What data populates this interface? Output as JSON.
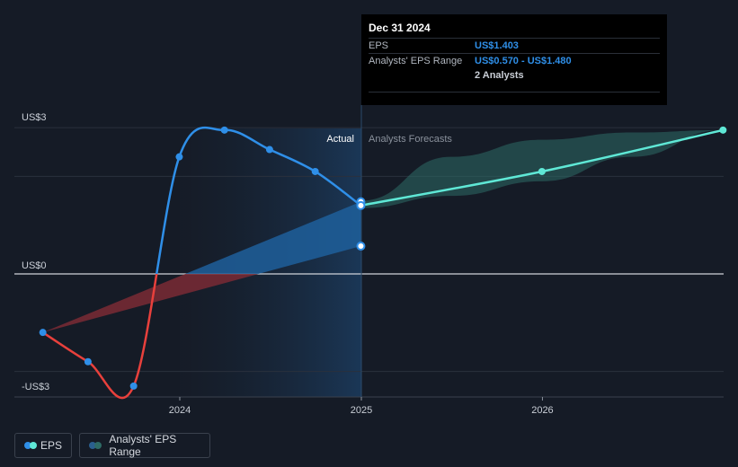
{
  "chart_data": {
    "type": "line",
    "x_ticks": [
      "2024",
      "2025",
      "2026"
    ],
    "y_ticks": [
      "US$3",
      "US$0",
      "-US$3"
    ],
    "ylim": [
      -3.0,
      3.0
    ],
    "divider_labels": {
      "actual": "Actual",
      "forecast": "Analysts Forecasts"
    },
    "series": [
      {
        "name": "EPS",
        "kind": "actual",
        "points": [
          {
            "x": "2023-03-31",
            "y": -1.2
          },
          {
            "x": "2023-06-30",
            "y": -1.8
          },
          {
            "x": "2023-09-30",
            "y": -2.3
          },
          {
            "x": "2023-12-31",
            "y": 2.4
          },
          {
            "x": "2024-03-31",
            "y": 2.95
          },
          {
            "x": "2024-06-30",
            "y": 2.55
          },
          {
            "x": "2024-09-30",
            "y": 2.1
          },
          {
            "x": "2024-12-31",
            "y": 1.403
          }
        ]
      },
      {
        "name": "EPS",
        "kind": "forecast",
        "points": [
          {
            "x": "2024-12-31",
            "y": 1.403
          },
          {
            "x": "2025-12-31",
            "y": 2.1
          },
          {
            "x": "2026-12-31",
            "y": 2.95
          }
        ]
      }
    ],
    "actual_range": [
      {
        "x": "2023-03-31",
        "low": -1.2,
        "high": -1.2
      },
      {
        "x": "2024-12-31",
        "low": 0.57,
        "high": 1.48
      }
    ],
    "forecast_range": [
      {
        "x": "2024-12-31",
        "low": 1.35,
        "high": 1.5
      },
      {
        "x": "2025-06-30",
        "low": 1.6,
        "high": 2.4
      },
      {
        "x": "2025-12-31",
        "low": 1.9,
        "high": 2.75
      },
      {
        "x": "2026-06-30",
        "low": 2.4,
        "high": 2.9
      },
      {
        "x": "2026-12-31",
        "low": 2.95,
        "high": 2.95
      }
    ],
    "tooltip": {
      "date": "Dec 31 2024",
      "eps_label": "EPS",
      "eps_value": "US$1.403",
      "range_label": "Analysts' EPS Range",
      "range_value": "US$0.570 - US$1.480",
      "analysts": "2 Analysts"
    },
    "legend": [
      {
        "label": "EPS",
        "colors": [
          "#2f8fe8",
          "#5fe8d6"
        ]
      },
      {
        "label": "Analysts' EPS Range",
        "colors": [
          "#2a5f8f",
          "#2e6b66"
        ]
      }
    ]
  },
  "colors": {
    "eps_positive": "#2f8fe8",
    "eps_negative": "#e8403c",
    "forecast_line": "#5fe8d6",
    "range_positive": "#1e5f9b",
    "range_negative": "#7a2a35",
    "forecast_range": "#2e6b66",
    "past_shade": "#1a2a3e"
  }
}
